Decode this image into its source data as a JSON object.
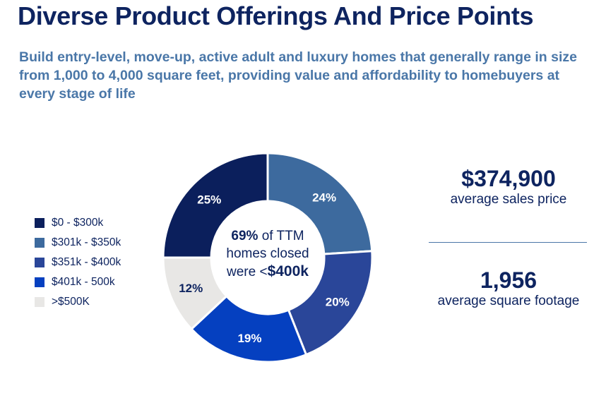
{
  "title": "Diverse Product Offerings And Price Points",
  "subtitle": "Build entry-level, move-up, active adult and luxury homes that generally range in size from 1,000 to 4,000 square feet, providing value and affordability to homebuyers at every stage of life",
  "center": {
    "pct": "69%",
    "line1_rest": " of TTM",
    "line2": "homes closed",
    "line3_pre": "were <",
    "line3_bold": "$400k"
  },
  "stats": [
    {
      "value": "$374,900",
      "label": "average sales price"
    },
    {
      "value": "1,956",
      "label": "average square footage"
    }
  ],
  "chart_data": {
    "type": "pie",
    "donut": true,
    "start": "top, clockwise",
    "categories": [
      "$301k - $350k",
      "$351k - $400k",
      "$401k - 500k",
      ">$500K",
      "$0 - $300k"
    ],
    "values": [
      24,
      20,
      19,
      12,
      25
    ],
    "labels": [
      "24%",
      "20%",
      "19%",
      "12%",
      "25%"
    ],
    "colors": [
      "#3D6A9E",
      "#2A4699",
      "#0540C0",
      "#E8E7E5",
      "#0B1F5C"
    ],
    "label_colors": [
      "#ffffff",
      "#ffffff",
      "#ffffff",
      "#0E2460",
      "#ffffff"
    ],
    "legend": [
      {
        "label": "$0 - $300k",
        "color": "#0B1F5C"
      },
      {
        "label": "$301k - $350k",
        "color": "#3D6A9E"
      },
      {
        "label": "$351k - $400k",
        "color": "#2A4699"
      },
      {
        "label": "$401k - 500k",
        "color": "#0540C0"
      },
      {
        "label": ">$500K",
        "color": "#E8E7E5"
      }
    ],
    "legend_position": "left"
  }
}
